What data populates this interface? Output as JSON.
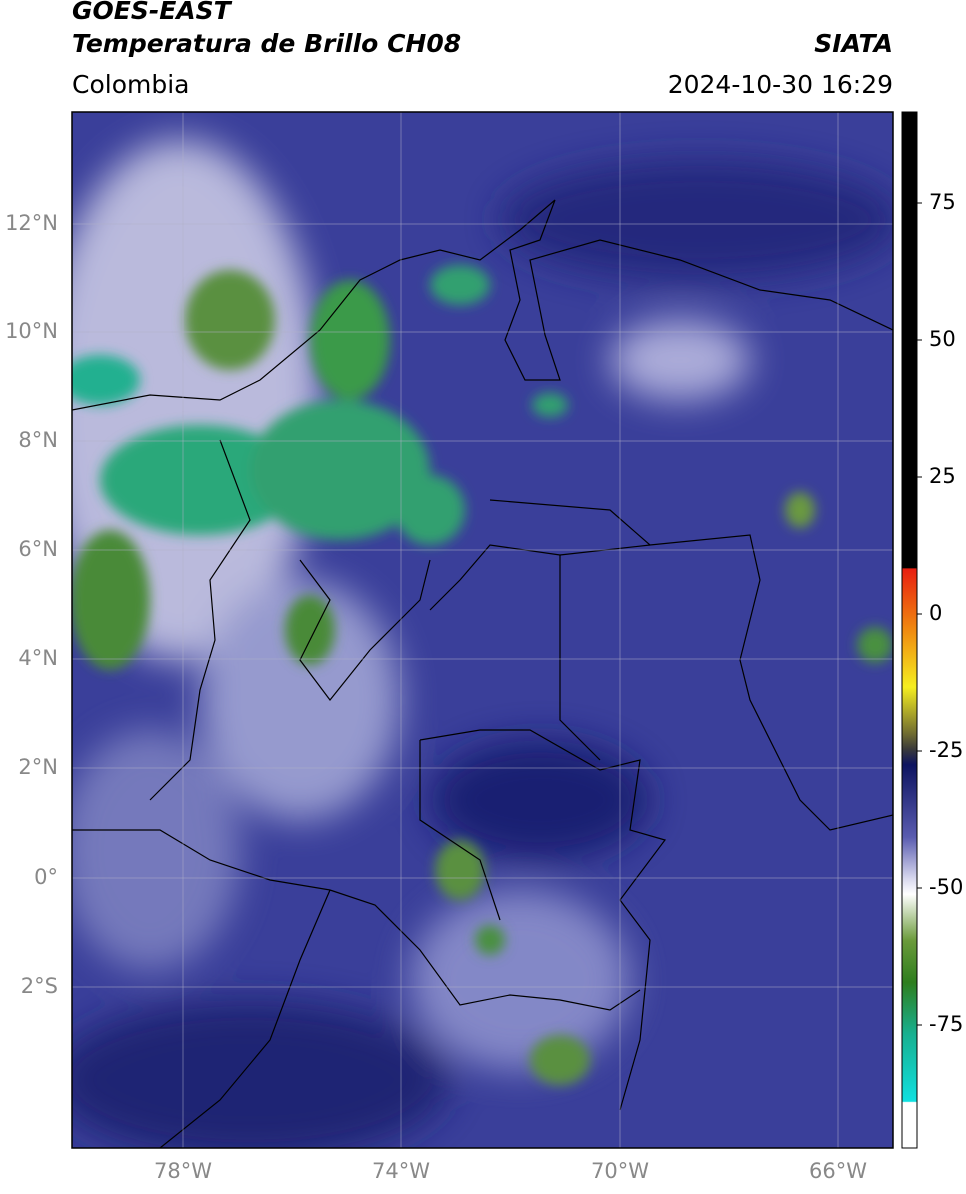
{
  "header": {
    "title": "GOES-EAST",
    "subtitle": "Temperatura de Brillo CH08",
    "region": "Colombia",
    "source": "SIATA",
    "datetime": "2024-10-30 16:29"
  },
  "map": {
    "lat_ticks": [
      "12°N",
      "10°N",
      "8°N",
      "6°N",
      "4°N",
      "2°N",
      "0°",
      "2°S"
    ],
    "lon_ticks": [
      "78°W",
      "74°W",
      "70°W",
      "66°W"
    ]
  },
  "colorbar": {
    "ticks": [
      75,
      50,
      25,
      0,
      -25,
      -50,
      -75
    ]
  }
}
